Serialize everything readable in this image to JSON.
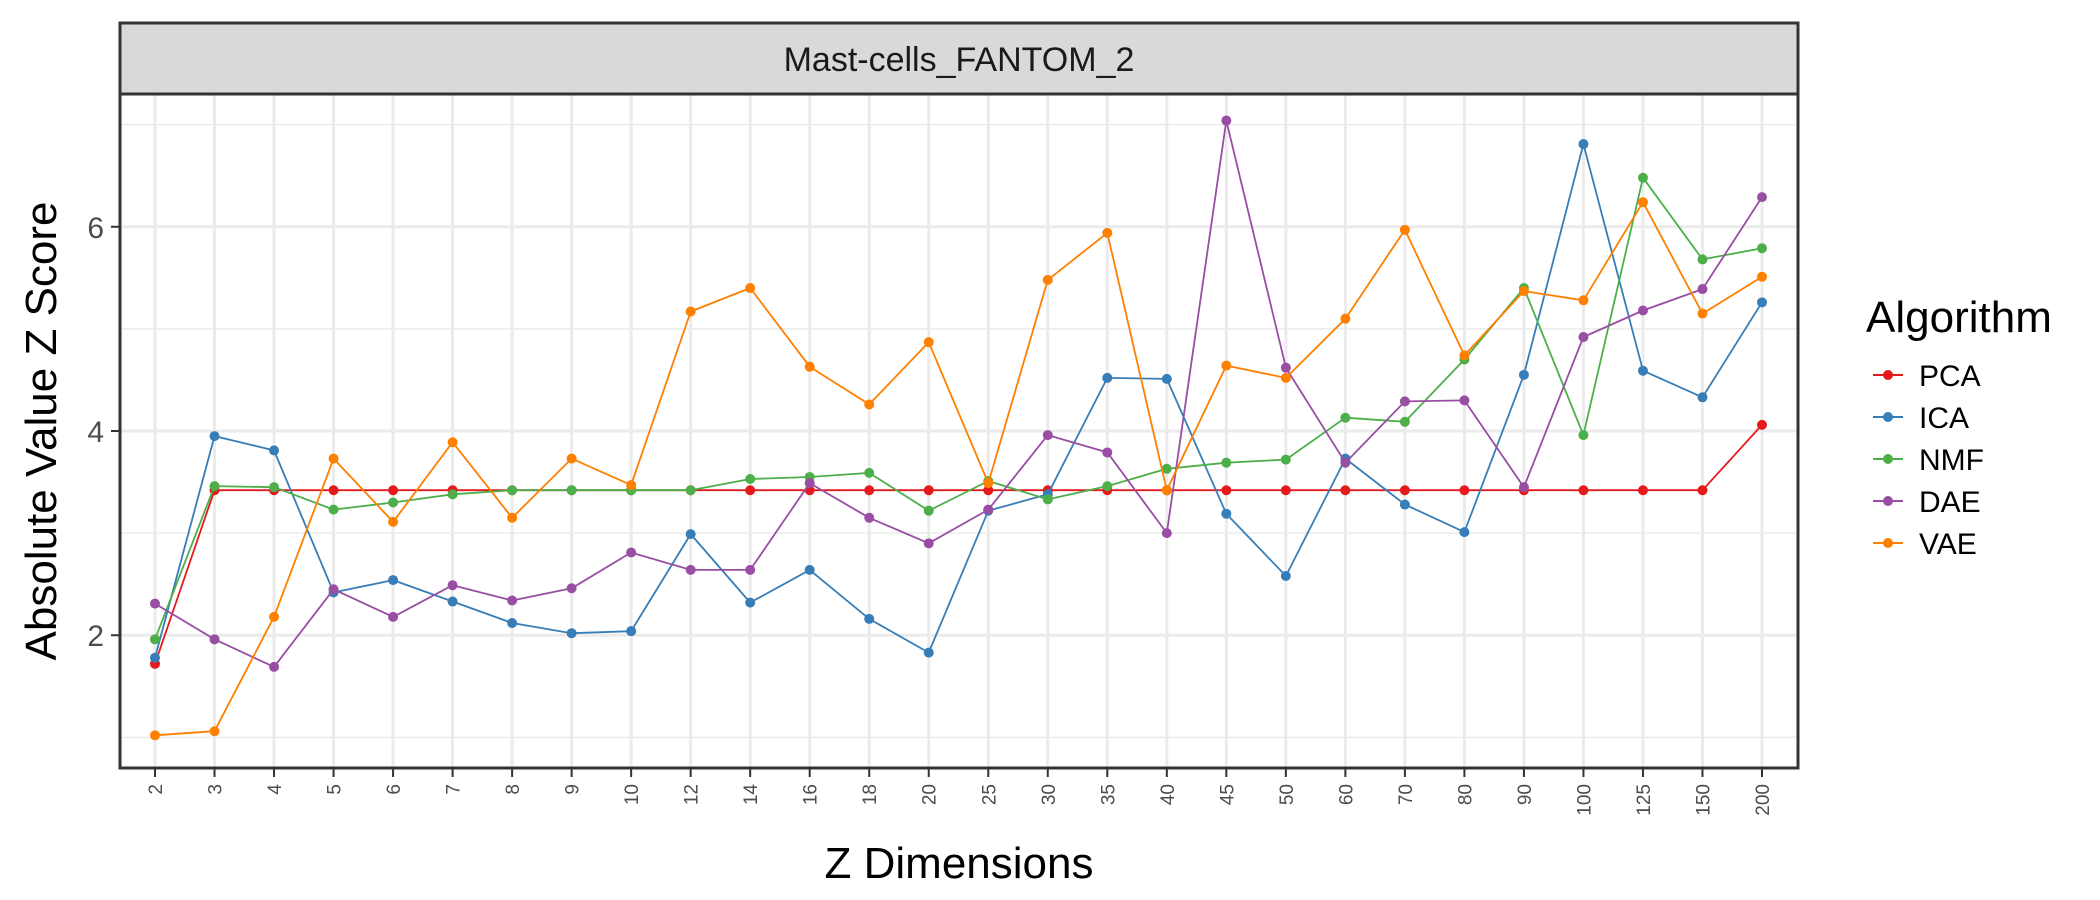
{
  "chart_data": {
    "type": "line",
    "facet_label": "Mast-cells_FANTOM_2",
    "xlabel": "Z Dimensions",
    "ylabel": "Absolute Value Z Score",
    "categories": [
      "2",
      "3",
      "4",
      "5",
      "6",
      "7",
      "8",
      "9",
      "10",
      "12",
      "14",
      "16",
      "18",
      "20",
      "25",
      "30",
      "35",
      "40",
      "45",
      "50",
      "60",
      "70",
      "80",
      "90",
      "100",
      "125",
      "150",
      "200"
    ],
    "y_ticks": [
      2,
      4,
      6
    ],
    "ylim": [
      0.7,
      7.3
    ],
    "grid": true,
    "legend": {
      "title": "Algorithm",
      "position": "right"
    },
    "series": [
      {
        "name": "PCA",
        "color": "#E41A1C",
        "values": [
          1.72,
          3.42,
          3.42,
          3.42,
          3.42,
          3.42,
          3.42,
          3.42,
          3.42,
          3.42,
          3.42,
          3.42,
          3.42,
          3.42,
          3.42,
          3.42,
          3.42,
          3.42,
          3.42,
          3.42,
          3.42,
          3.42,
          3.42,
          3.42,
          3.42,
          3.42,
          3.42,
          4.06
        ]
      },
      {
        "name": "ICA",
        "color": "#377EB8",
        "values": [
          1.78,
          3.95,
          3.81,
          2.42,
          2.54,
          2.33,
          2.12,
          2.02,
          2.04,
          2.99,
          2.32,
          2.64,
          2.16,
          1.83,
          3.22,
          3.38,
          4.52,
          4.51,
          3.19,
          2.58,
          3.73,
          3.28,
          3.01,
          4.55,
          6.81,
          4.59,
          4.33,
          5.26
        ]
      },
      {
        "name": "NMF",
        "color": "#4DAF4A",
        "values": [
          1.96,
          3.46,
          3.45,
          3.23,
          3.3,
          3.38,
          3.42,
          3.42,
          3.42,
          3.42,
          3.53,
          3.55,
          3.59,
          3.22,
          3.51,
          3.33,
          3.46,
          3.63,
          3.69,
          3.72,
          4.13,
          4.09,
          4.7,
          5.4,
          3.96,
          6.48,
          5.68,
          5.79
        ]
      },
      {
        "name": "DAE",
        "color": "#984EA3",
        "values": [
          2.31,
          1.96,
          1.69,
          2.45,
          2.18,
          2.49,
          2.34,
          2.46,
          2.81,
          2.64,
          2.64,
          3.49,
          3.15,
          2.9,
          3.23,
          3.96,
          3.79,
          3.0,
          7.04,
          4.62,
          3.69,
          4.29,
          4.3,
          3.45,
          4.92,
          5.18,
          5.39,
          6.29
        ]
      },
      {
        "name": "VAE",
        "color": "#FF7F00",
        "values": [
          1.02,
          1.06,
          2.18,
          3.73,
          3.11,
          3.89,
          3.15,
          3.73,
          3.47,
          5.17,
          5.4,
          4.63,
          4.26,
          4.87,
          3.49,
          5.48,
          5.94,
          3.42,
          4.64,
          4.52,
          5.1,
          5.97,
          4.74,
          5.37,
          5.28,
          6.24,
          5.15,
          5.51
        ]
      }
    ]
  }
}
